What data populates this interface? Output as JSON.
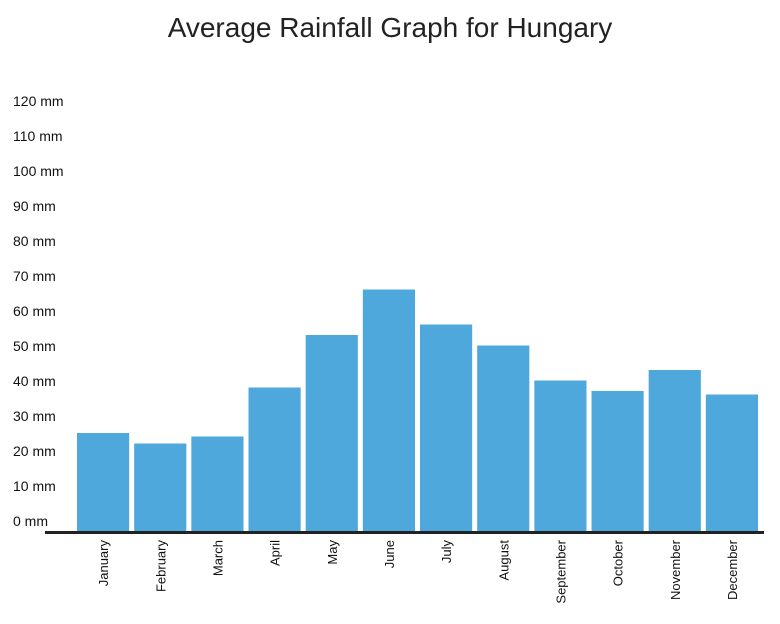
{
  "chart_data": {
    "type": "bar",
    "title": "Average Rainfall Graph for Hungary",
    "xlabel": "",
    "ylabel": "",
    "categories": [
      "January",
      "February",
      "March",
      "April",
      "May",
      "June",
      "July",
      "August",
      "September",
      "October",
      "November",
      "December"
    ],
    "values": [
      28,
      25,
      27,
      41,
      56,
      69,
      59,
      53,
      43,
      40,
      46,
      39
    ],
    "unit": "mm",
    "ylim": [
      0,
      120
    ],
    "yticks": [
      0,
      10,
      20,
      30,
      40,
      50,
      60,
      70,
      80,
      90,
      100,
      110,
      120
    ],
    "ytick_labels": [
      "0 mm",
      "10 mm",
      "20 mm",
      "30 mm",
      "40 mm",
      "50 mm",
      "60 mm",
      "70 mm",
      "80 mm",
      "90 mm",
      "100 mm",
      "110 mm",
      "120 mm"
    ],
    "bar_color": "#4fa8dc",
    "axis_color": "#222222",
    "grid": false,
    "legend": "none"
  }
}
